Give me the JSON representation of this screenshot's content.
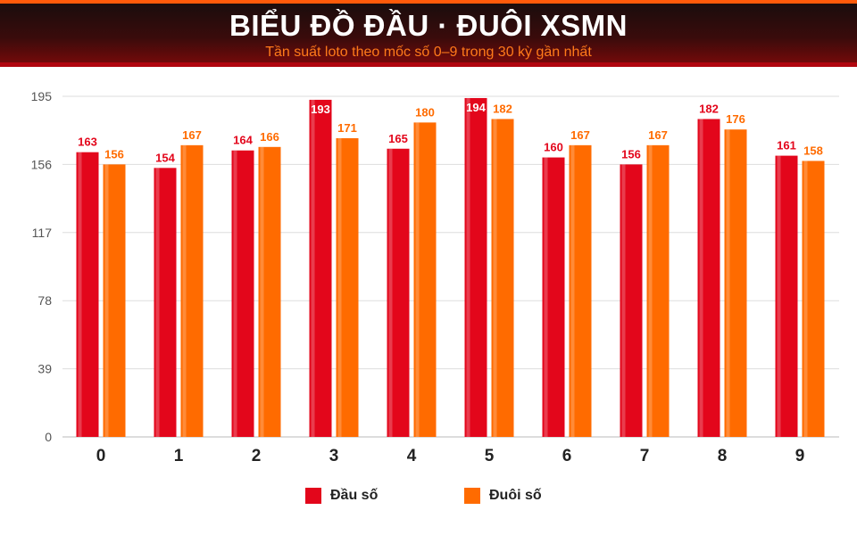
{
  "header": {
    "title": "BIỂU ĐỒ ĐẦU · ĐUÔI XSMN",
    "subtitle": "Tần suất loto theo mốc số 0–9 trong 30 kỳ gần nhất"
  },
  "colors": {
    "dau": "#e3061b",
    "duoi": "#ff6b00",
    "grid": "#dddddd",
    "axis_text": "#555555"
  },
  "legend": {
    "dau_label": "Đầu số",
    "duoi_label": "Đuôi số"
  },
  "chart_data": {
    "type": "bar",
    "categories": [
      "0",
      "1",
      "2",
      "3",
      "4",
      "5",
      "6",
      "7",
      "8",
      "9"
    ],
    "series": [
      {
        "name": "Đầu số",
        "values": [
          163,
          154,
          164,
          193,
          165,
          194,
          160,
          156,
          182,
          161
        ]
      },
      {
        "name": "Đuôi số",
        "values": [
          156,
          167,
          166,
          171,
          180,
          182,
          167,
          167,
          176,
          158
        ]
      }
    ],
    "yticks": [
      0,
      39,
      78,
      117,
      156,
      195
    ],
    "ylim": [
      0,
      195
    ],
    "grid": true,
    "legend_position": "bottom"
  }
}
